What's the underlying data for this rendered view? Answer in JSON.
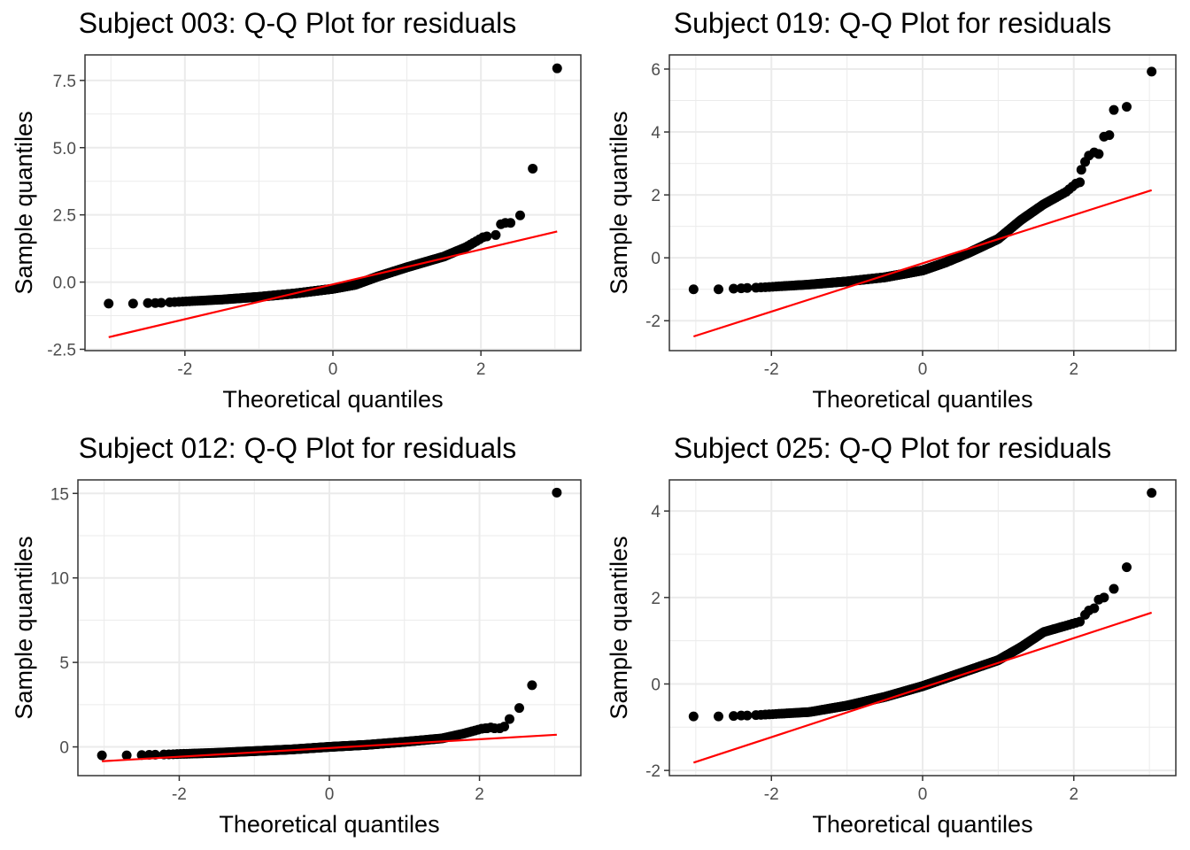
{
  "colors": {
    "points": "#000000",
    "reference_line": "#ff0000",
    "grid": "#ebebeb",
    "panel_border": "#333333"
  },
  "chart_data": [
    {
      "type": "scatter",
      "title": "Subject 003: Q-Q Plot for residuals",
      "xlabel": "Theoretical quantiles",
      "ylabel": "Sample quantiles",
      "xlim": [
        -3.35,
        3.35
      ],
      "ylim": [
        -2.55,
        8.45
      ],
      "x_ticks": [
        -2,
        0,
        2
      ],
      "x_tick_labels": [
        "-2",
        "0",
        "2"
      ],
      "y_ticks": [
        -2.5,
        0,
        2.5,
        5,
        7.5
      ],
      "y_tick_labels": [
        "-2.5",
        "0.0",
        "2.5",
        "5.0",
        "7.5"
      ],
      "grid": true,
      "curve": [
        [
          -2.2,
          -0.75
        ],
        [
          -1.5,
          -0.65
        ],
        [
          -1,
          -0.55
        ],
        [
          -0.5,
          -0.42
        ],
        [
          0,
          -0.25
        ],
        [
          0.3,
          -0.1
        ],
        [
          0.6,
          0.2
        ],
        [
          1,
          0.55
        ],
        [
          1.5,
          0.95
        ],
        [
          1.8,
          1.3
        ],
        [
          2.05,
          1.7
        ]
      ],
      "tail_points": [
        [
          -3.03,
          -0.8
        ],
        [
          -2.7,
          -0.8
        ],
        [
          -2.5,
          -0.78
        ],
        [
          -2.4,
          -0.78
        ],
        [
          -2.32,
          -0.77
        ],
        [
          2.2,
          1.75
        ],
        [
          2.27,
          2.15
        ],
        [
          2.33,
          2.2
        ],
        [
          2.4,
          2.2
        ],
        [
          2.53,
          2.48
        ],
        [
          2.7,
          4.22
        ],
        [
          3.03,
          7.95
        ]
      ],
      "reference_line": {
        "x": [
          -3.03,
          3.03
        ],
        "y": [
          -2.05,
          1.88
        ]
      }
    },
    {
      "type": "scatter",
      "title": "Subject 019: Q-Q Plot for residuals",
      "xlabel": "Theoretical quantiles",
      "ylabel": "Sample quantiles",
      "xlim": [
        -3.35,
        3.35
      ],
      "ylim": [
        -2.95,
        6.45
      ],
      "x_ticks": [
        -2,
        0,
        2
      ],
      "x_tick_labels": [
        "-2",
        "0",
        "2"
      ],
      "y_ticks": [
        -2,
        0,
        2,
        4,
        6
      ],
      "y_tick_labels": [
        "-2",
        "0",
        "2",
        "4",
        "6"
      ],
      "grid": true,
      "curve": [
        [
          -2.2,
          -0.95
        ],
        [
          -1.5,
          -0.85
        ],
        [
          -1,
          -0.75
        ],
        [
          -0.5,
          -0.62
        ],
        [
          0,
          -0.4
        ],
        [
          0.3,
          -0.15
        ],
        [
          0.6,
          0.15
        ],
        [
          1,
          0.6
        ],
        [
          1.3,
          1.2
        ],
        [
          1.6,
          1.7
        ],
        [
          1.9,
          2.1
        ],
        [
          2.05,
          2.4
        ]
      ],
      "tail_points": [
        [
          -3.03,
          -1.0
        ],
        [
          -2.7,
          -1.0
        ],
        [
          -2.5,
          -0.98
        ],
        [
          -2.4,
          -0.97
        ],
        [
          -2.32,
          -0.96
        ],
        [
          2.1,
          2.8
        ],
        [
          2.15,
          3.05
        ],
        [
          2.2,
          3.25
        ],
        [
          2.27,
          3.35
        ],
        [
          2.33,
          3.3
        ],
        [
          2.4,
          3.85
        ],
        [
          2.47,
          3.9
        ],
        [
          2.53,
          4.7
        ],
        [
          2.7,
          4.8
        ],
        [
          3.03,
          5.92
        ]
      ],
      "reference_line": {
        "x": [
          -3.03,
          3.03
        ],
        "y": [
          -2.5,
          2.15
        ]
      }
    },
    {
      "type": "scatter",
      "title": "Subject 012: Q-Q Plot for residuals",
      "xlabel": "Theoretical quantiles",
      "ylabel": "Sample quantiles",
      "xlim": [
        -3.35,
        3.35
      ],
      "ylim": [
        -1.7,
        15.8
      ],
      "x_ticks": [
        -2,
        0,
        2
      ],
      "x_tick_labels": [
        "-2",
        "0",
        "2"
      ],
      "y_ticks": [
        0,
        5,
        10,
        15
      ],
      "y_tick_labels": [
        "0",
        "5",
        "10",
        "15"
      ],
      "grid": true,
      "curve": [
        [
          -2.2,
          -0.45
        ],
        [
          -1.5,
          -0.35
        ],
        [
          -1,
          -0.25
        ],
        [
          -0.5,
          -0.15
        ],
        [
          0,
          0
        ],
        [
          0.5,
          0.12
        ],
        [
          1,
          0.3
        ],
        [
          1.5,
          0.5
        ],
        [
          1.8,
          0.8
        ],
        [
          2.05,
          1.1
        ]
      ],
      "tail_points": [
        [
          -3.03,
          -0.5
        ],
        [
          -2.7,
          -0.5
        ],
        [
          -2.5,
          -0.48
        ],
        [
          -2.4,
          -0.47
        ],
        [
          -2.32,
          -0.46
        ],
        [
          2.1,
          1.1
        ],
        [
          2.15,
          1.15
        ],
        [
          2.2,
          1.1
        ],
        [
          2.27,
          1.1
        ],
        [
          2.33,
          1.2
        ],
        [
          2.4,
          1.65
        ],
        [
          2.53,
          2.3
        ],
        [
          2.7,
          3.65
        ],
        [
          3.03,
          15.05
        ]
      ],
      "reference_line": {
        "x": [
          -3.03,
          3.03
        ],
        "y": [
          -0.85,
          0.72
        ]
      }
    },
    {
      "type": "scatter",
      "title": "Subject 025: Q-Q Plot for residuals",
      "xlabel": "Theoretical quantiles",
      "ylabel": "Sample quantiles",
      "xlim": [
        -3.35,
        3.35
      ],
      "ylim": [
        -2.12,
        4.72
      ],
      "x_ticks": [
        -2,
        0,
        2
      ],
      "x_tick_labels": [
        "-2",
        "0",
        "2"
      ],
      "y_ticks": [
        -2,
        0,
        2,
        4
      ],
      "y_tick_labels": [
        "-2",
        "0",
        "2",
        "4"
      ],
      "grid": true,
      "curve": [
        [
          -2.2,
          -0.72
        ],
        [
          -1.5,
          -0.65
        ],
        [
          -1,
          -0.5
        ],
        [
          -0.5,
          -0.3
        ],
        [
          0,
          -0.05
        ],
        [
          0.5,
          0.25
        ],
        [
          1,
          0.55
        ],
        [
          1.3,
          0.85
        ],
        [
          1.6,
          1.2
        ],
        [
          1.9,
          1.35
        ],
        [
          2.1,
          1.45
        ]
      ],
      "tail_points": [
        [
          -3.03,
          -0.75
        ],
        [
          -2.7,
          -0.75
        ],
        [
          -2.5,
          -0.74
        ],
        [
          -2.4,
          -0.73
        ],
        [
          -2.32,
          -0.73
        ],
        [
          2.15,
          1.6
        ],
        [
          2.2,
          1.7
        ],
        [
          2.27,
          1.75
        ],
        [
          2.33,
          1.95
        ],
        [
          2.4,
          2.0
        ],
        [
          2.53,
          2.2
        ],
        [
          2.7,
          2.7
        ],
        [
          3.03,
          4.42
        ]
      ],
      "reference_line": {
        "x": [
          -3.03,
          3.03
        ],
        "y": [
          -1.82,
          1.65
        ]
      }
    }
  ]
}
